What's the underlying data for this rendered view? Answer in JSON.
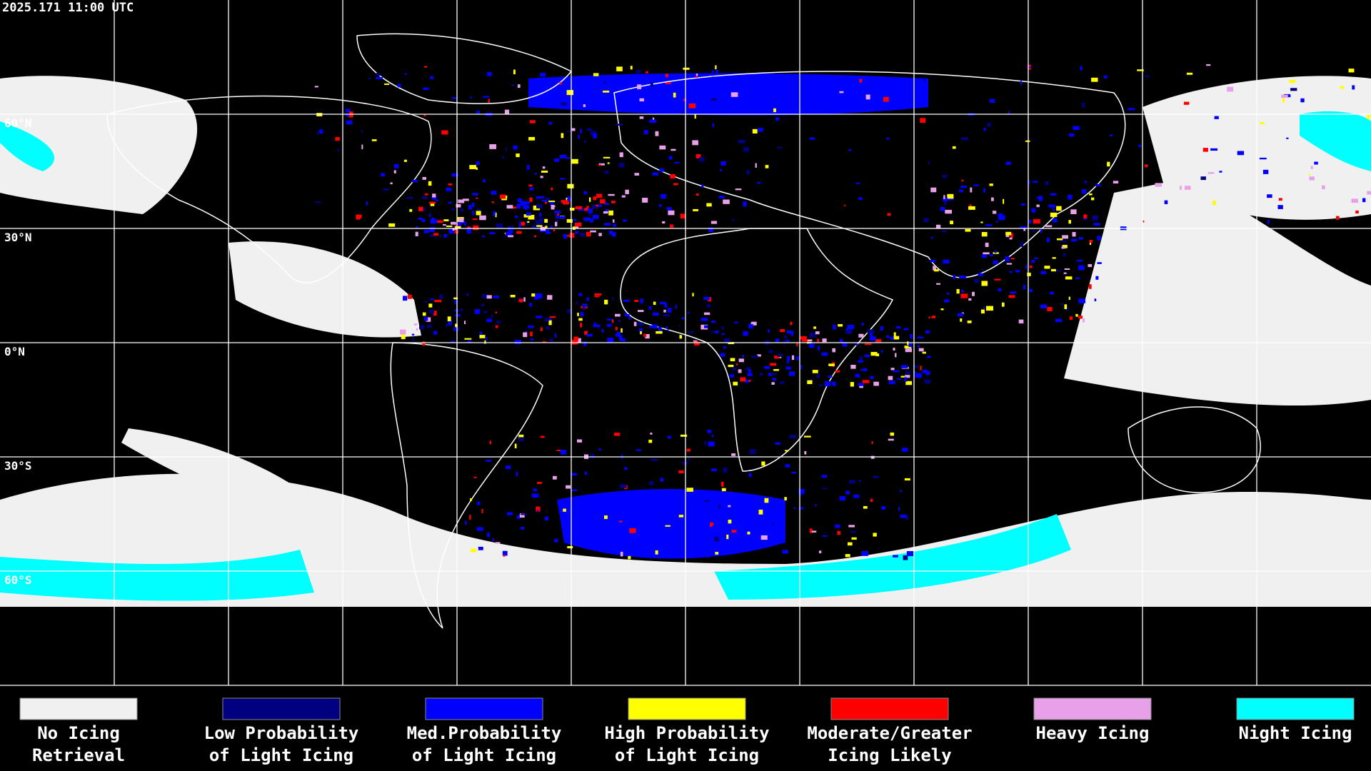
{
  "header": {
    "timestamp": "2025.171 11:00 UTC"
  },
  "map": {
    "latitude_labels": [
      "60°N",
      "30°N",
      "0°N",
      "30°S",
      "60°S"
    ]
  },
  "legend": {
    "items": [
      {
        "lines": [
          "No Icing",
          "Retrieval"
        ],
        "color": "#f0f0f0"
      },
      {
        "lines": [
          "Low Probability",
          "of Light Icing"
        ],
        "color": "#000080"
      },
      {
        "lines": [
          "Med.Probability",
          "of Light Icing"
        ],
        "color": "#0000ff"
      },
      {
        "lines": [
          "High Probability",
          "of Light Icing"
        ],
        "color": "#ffff00"
      },
      {
        "lines": [
          "Moderate/Greater",
          "Icing Likely"
        ],
        "color": "#ff0000"
      },
      {
        "lines": [
          "Heavy Icing"
        ],
        "color": "#e8a0e8"
      },
      {
        "lines": [
          "Night Icing"
        ],
        "color": "#00ffff"
      }
    ]
  }
}
